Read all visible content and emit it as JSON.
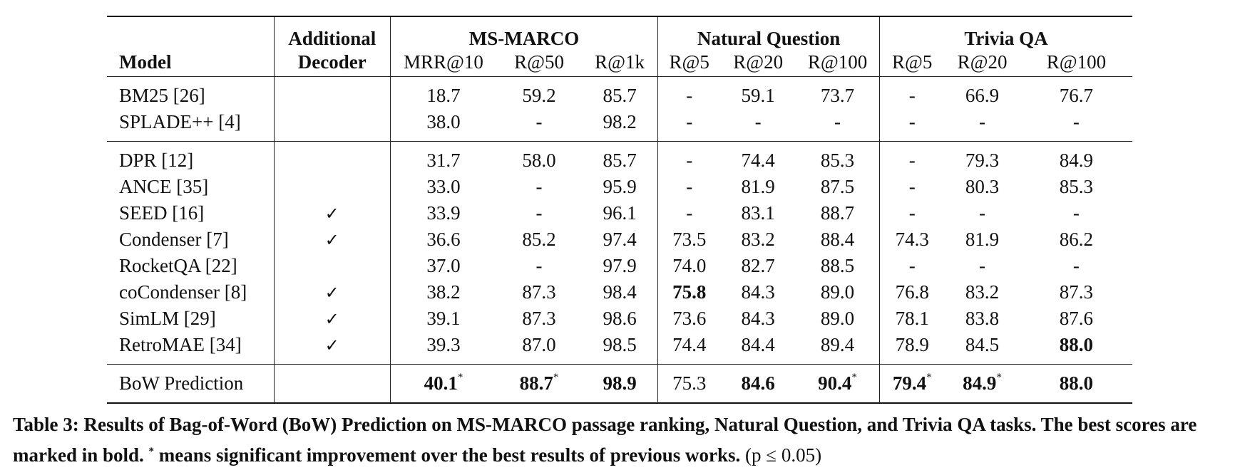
{
  "header": {
    "model_label": "Model",
    "decoder_line1": "Additional",
    "decoder_line2": "Decoder",
    "groups": [
      "MS-MARCO",
      "Natural Question",
      "Trivia QA"
    ],
    "metrics": [
      "MRR@10",
      "R@50",
      "R@1k",
      "R@5",
      "R@20",
      "R@100",
      "R@5",
      "R@20",
      "R@100"
    ]
  },
  "sections": [
    {
      "rows": [
        {
          "model": "BM25 [26]",
          "decoder": "",
          "values": [
            "18.7",
            "59.2",
            "85.7",
            "-",
            "59.1",
            "73.7",
            "-",
            "66.9",
            "76.7"
          ]
        },
        {
          "model": "SPLADE++ [4]",
          "decoder": "",
          "values": [
            "38.0",
            "-",
            "98.2",
            "-",
            "-",
            "-",
            "-",
            "-",
            "-"
          ]
        }
      ]
    },
    {
      "rows": [
        {
          "model": "DPR [12]",
          "decoder": "",
          "values": [
            "31.7",
            "58.0",
            "85.7",
            "-",
            "74.4",
            "85.3",
            "-",
            "79.3",
            "84.9"
          ]
        },
        {
          "model": "ANCE [35]",
          "decoder": "",
          "values": [
            "33.0",
            "-",
            "95.9",
            "-",
            "81.9",
            "87.5",
            "-",
            "80.3",
            "85.3"
          ]
        },
        {
          "model": "SEED [16]",
          "decoder": "✓",
          "values": [
            "33.9",
            "-",
            "96.1",
            "-",
            "83.1",
            "88.7",
            "-",
            "-",
            "-"
          ]
        },
        {
          "model": "Condenser [7]",
          "decoder": "✓",
          "values": [
            "36.6",
            "85.2",
            "97.4",
            "73.5",
            "83.2",
            "88.4",
            "74.3",
            "81.9",
            "86.2"
          ]
        },
        {
          "model": "RocketQA [22]",
          "decoder": "",
          "values": [
            "37.0",
            "-",
            "97.9",
            "74.0",
            "82.7",
            "88.5",
            "-",
            "-",
            "-"
          ]
        },
        {
          "model": "coCondenser [8]",
          "decoder": "✓",
          "values": [
            "38.2",
            "87.3",
            "98.4",
            "75.8",
            "84.3",
            "89.0",
            "76.8",
            "83.2",
            "87.3"
          ],
          "bold": [
            3
          ]
        },
        {
          "model": "SimLM [29]",
          "decoder": "✓",
          "values": [
            "39.1",
            "87.3",
            "98.6",
            "73.6",
            "84.3",
            "89.0",
            "78.1",
            "83.8",
            "87.6"
          ]
        },
        {
          "model": "RetroMAE [34]",
          "decoder": "✓",
          "values": [
            "39.3",
            "87.0",
            "98.5",
            "74.4",
            "84.4",
            "89.4",
            "78.9",
            "84.5",
            "88.0"
          ],
          "bold": [
            8
          ]
        }
      ]
    }
  ],
  "final_row": {
    "model": "BoW Prediction",
    "decoder": "",
    "values": [
      "40.1",
      "88.7",
      "98.9",
      "75.3",
      "84.6",
      "90.4",
      "79.4",
      "84.9",
      "88.0"
    ],
    "bold": [
      0,
      1,
      2,
      4,
      5,
      6,
      7,
      8
    ],
    "starred": [
      0,
      1,
      5,
      6,
      7
    ]
  },
  "caption": {
    "lead": "Table 3: Results of Bag-of-Word (BoW) Prediction on MS-MARCO passage ranking, Natural Question, and Trivia QA tasks. The best scores are marked in bold.",
    "star": "*",
    "tail": "means significant improvement over the best results of previous works.",
    "pvalue": "(p ≤ 0.05)"
  }
}
